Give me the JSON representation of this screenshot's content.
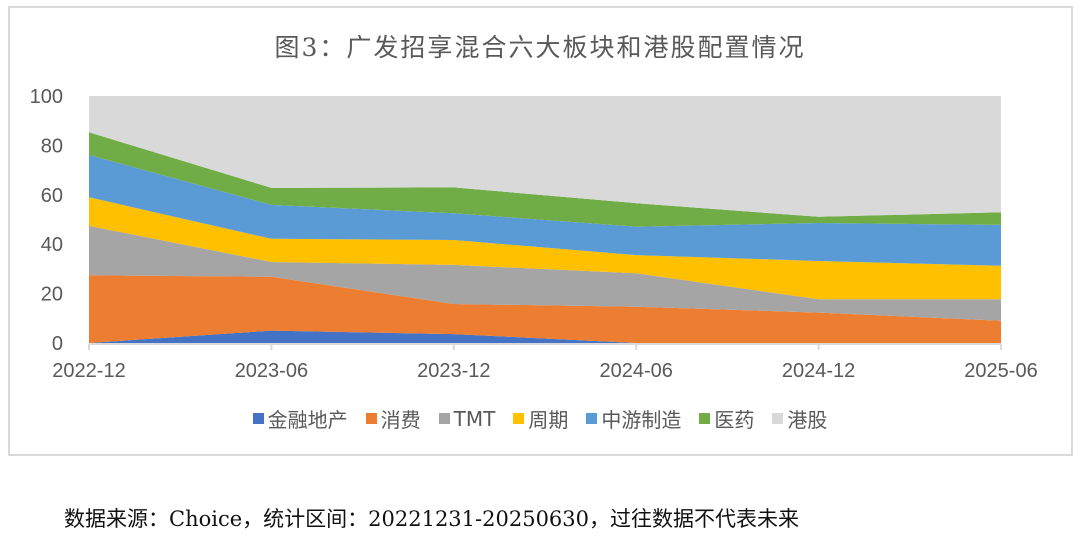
{
  "chart_data": {
    "type": "area",
    "stacked": true,
    "title": "图3：广发招享混合六大板块和港股配置情况",
    "xlabel": "",
    "ylabel": "",
    "ylim": [
      0,
      100
    ],
    "yticks": [
      0,
      20,
      40,
      60,
      80,
      100
    ],
    "categories": [
      "2022-12",
      "2023-06",
      "2023-12",
      "2024-06",
      "2024-12",
      "2025-06"
    ],
    "grid": false,
    "legend_position": "bottom",
    "series": [
      {
        "name": "金融地产",
        "color": "#4472c4",
        "values": [
          0,
          5.0,
          3.6,
          0,
          0,
          0
        ]
      },
      {
        "name": "消费",
        "color": "#ed7d31",
        "values": [
          27.4,
          21.8,
          12.2,
          14.7,
          12.3,
          9.0
        ]
      },
      {
        "name": "TMT",
        "color": "#a5a5a5",
        "values": [
          20.0,
          6.0,
          15.8,
          13.5,
          5.4,
          8.7
        ]
      },
      {
        "name": "周期",
        "color": "#ffc000",
        "values": [
          11.6,
          9.4,
          10.1,
          7.4,
          15.5,
          13.6
        ]
      },
      {
        "name": "中游制造",
        "color": "#5b9bd5",
        "values": [
          17.1,
          13.7,
          10.8,
          11.5,
          15.4,
          16.5
        ]
      },
      {
        "name": "医药",
        "color": "#70ad47",
        "values": [
          9.2,
          6.9,
          10.5,
          9.5,
          2.5,
          5.1
        ]
      },
      {
        "name": "港股",
        "color": "#d9d9d9",
        "values": [
          14.7,
          37.2,
          37.0,
          43.4,
          48.9,
          47.1
        ]
      }
    ]
  },
  "footnote": "数据来源：Choice，统计区间：20221231-20250630，过往数据不代表未来"
}
